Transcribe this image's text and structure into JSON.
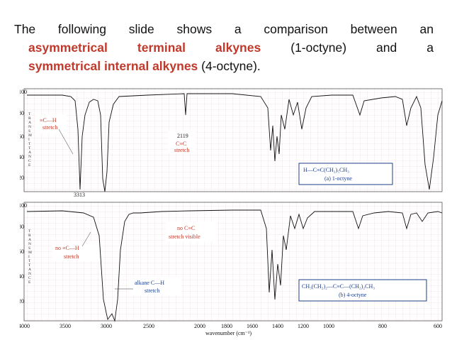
{
  "slide": {
    "intro_prefix": "The following slide shows a comparison between an",
    "term_terminal": "asymmetrical terminal alkynes",
    "terminal_example": " (1-octyne) and a",
    "term_internal": "symmetrical internal alkynes",
    "internal_example": " (4-octyne)."
  },
  "spectrum_top": {
    "caption_formula": "H—C≡C(CH₂)₅CH₃",
    "caption_name": "(a) 1-octyne",
    "anno_ch_bond": "≡C—H",
    "anno_ch_stretch": "stretch",
    "anno_3313": "3313",
    "anno_2119": "2119",
    "anno_cc_bond": "C≡C",
    "anno_cc_stretch": "stretch",
    "y_ticks": [
      "100",
      "80",
      "60",
      "40",
      "20"
    ],
    "axis_letters": [
      "T",
      "R",
      "A",
      "N",
      "S",
      "M",
      "I",
      "T",
      "T",
      "A",
      "N",
      "C",
      "E"
    ]
  },
  "spectrum_bottom": {
    "caption_formula": "CH₃(CH₂)₂—C≡C—(CH₂)₂CH₃",
    "caption_name": "(b) 4-octyne",
    "anno_no_ch_1": "no ≡C—H",
    "anno_no_ch_2": "stretch",
    "anno_no_cc_1": "no C≡C",
    "anno_no_cc_2": "stretch visible",
    "anno_alkane_1": "alkane C—H",
    "anno_alkane_2": "stretch",
    "y_ticks": [
      "100",
      "80",
      "60",
      "40",
      "20"
    ],
    "axis_letters": [
      "T",
      "R",
      "A",
      "N",
      "S",
      "M",
      "I",
      "T",
      "T",
      "A",
      "N",
      "C",
      "E"
    ]
  },
  "x_axis": {
    "ticks": [
      "4000",
      "3500",
      "3000",
      "2500",
      "2000",
      "1800",
      "1600",
      "1400",
      "1200",
      "1000",
      "800",
      "600"
    ],
    "label": "wavenumber (cm⁻¹)"
  }
}
